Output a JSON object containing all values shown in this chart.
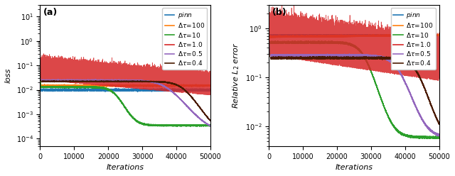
{
  "colors": {
    "pinn": "#1f77b4",
    "dt100": "#ff7f0e",
    "dt10": "#2ca02c",
    "dt1": "#d62728",
    "dt05": "#9467bd",
    "dt04": "#4a1a00"
  },
  "xlim": [
    0,
    50000
  ],
  "ylim_a": [
    5e-05,
    30
  ],
  "ylim_b": [
    0.004,
    3
  ],
  "n_points": 50000,
  "figsize": [
    6.4,
    2.48
  ],
  "dpi": 100
}
